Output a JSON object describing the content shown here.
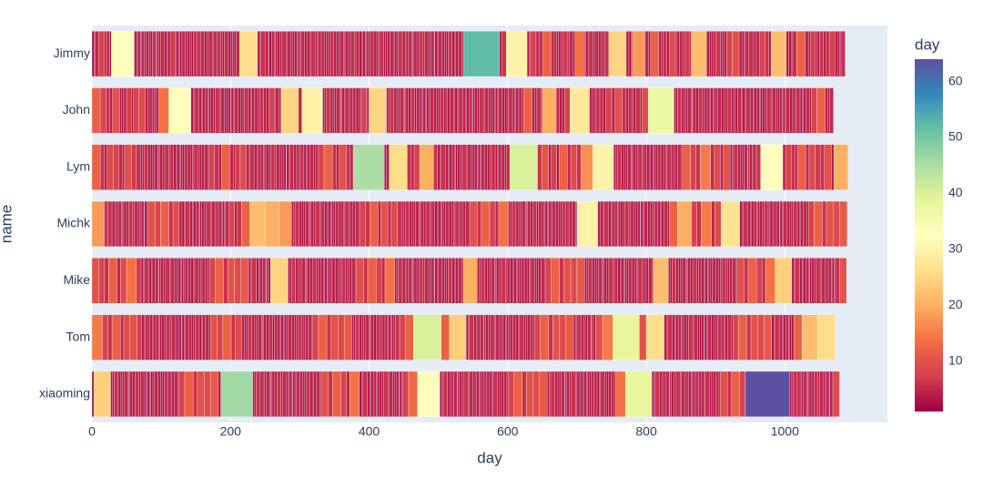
{
  "chart_data": {
    "type": "bar",
    "orientation": "h",
    "barmode": "stack",
    "categories": [
      "Jimmy",
      "John",
      "Lym",
      "Michk",
      "Mike",
      "Tom",
      "xiaoming"
    ],
    "values": [
      [
        3,
        2,
        5,
        8,
        2,
        6,
        2,
        33,
        4,
        2,
        3,
        1,
        5,
        2,
        4,
        3,
        2,
        6,
        1,
        3,
        2,
        5,
        4,
        2,
        3,
        7,
        2,
        4,
        1,
        3,
        5,
        2,
        4,
        3,
        2,
        6,
        3,
        2,
        5,
        4,
        3,
        5,
        2,
        4,
        6,
        3,
        2,
        5,
        4,
        3,
        2,
        3,
        5,
        26,
        3,
        2,
        6,
        4,
        2,
        3,
        5,
        1,
        2,
        4,
        3,
        6,
        2,
        5,
        3,
        2,
        4,
        1,
        3,
        2,
        5,
        4,
        3,
        2,
        6,
        3,
        2,
        4,
        5,
        2,
        3,
        2,
        6,
        4,
        2,
        3,
        5,
        1,
        2,
        4,
        3,
        6,
        2,
        5,
        3,
        2,
        4,
        1,
        3,
        2,
        5,
        4,
        3,
        2,
        6,
        3,
        2,
        4,
        5,
        2,
        3,
        2,
        6,
        4,
        2,
        3,
        5,
        1,
        2,
        4,
        3,
        6,
        2,
        5,
        3,
        2,
        4,
        1,
        3,
        2,
        5,
        4,
        3,
        2,
        6,
        3,
        2,
        4,
        5,
        2,
        52,
        4,
        6,
        30,
        3,
        2,
        8,
        4,
        6,
        12,
        3,
        5,
        2,
        4,
        3,
        7,
        2,
        5,
        3,
        14,
        2,
        4,
        6,
        3,
        5,
        4,
        3,
        2,
        6,
        25,
        4,
        3,
        2,
        18,
        5,
        3,
        12,
        4,
        2,
        6,
        3,
        9,
        2,
        4,
        5,
        3,
        7,
        2,
        22,
        4,
        3,
        2,
        5,
        6,
        3,
        2,
        4,
        8,
        10,
        4,
        3,
        2,
        5,
        6,
        3,
        2,
        4,
        8,
        6,
        3,
        22,
        4,
        3,
        2,
        6,
        12,
        5,
        3,
        7,
        2,
        4,
        6,
        3,
        5,
        8,
        4,
        3,
        2,
        6
      ],
      [
        12,
        8,
        6,
        4,
        10,
        3,
        2,
        5,
        7,
        3,
        8,
        9,
        4,
        6,
        3,
        2,
        5,
        14,
        32,
        3,
        2,
        6,
        4,
        2,
        3,
        5,
        1,
        2,
        4,
        3,
        6,
        2,
        5,
        3,
        2,
        4,
        1,
        3,
        2,
        5,
        4,
        3,
        2,
        6,
        3,
        2,
        4,
        5,
        2,
        6,
        4,
        3,
        8,
        2,
        5,
        3,
        25,
        5,
        30,
        3,
        2,
        6,
        4,
        2,
        3,
        5,
        1,
        2,
        4,
        6,
        3,
        2,
        5,
        4,
        3,
        8,
        2,
        2,
        25,
        3,
        2,
        6,
        4,
        2,
        3,
        5,
        1,
        2,
        4,
        3,
        6,
        2,
        5,
        3,
        2,
        4,
        1,
        3,
        2,
        5,
        4,
        3,
        2,
        6,
        3,
        2,
        4,
        5,
        2,
        3,
        2,
        6,
        4,
        2,
        3,
        5,
        1,
        2,
        4,
        3,
        6,
        2,
        5,
        3,
        2,
        4,
        1,
        3,
        2,
        5,
        4,
        3,
        2,
        6,
        3,
        2,
        4,
        5,
        2,
        12,
        4,
        3,
        6,
        2,
        20,
        5,
        3,
        4,
        8,
        28,
        4,
        3,
        2,
        6,
        5,
        3,
        8,
        2,
        4,
        10,
        6,
        3,
        5,
        2,
        4,
        6,
        3,
        9,
        37,
        3,
        2,
        6,
        4,
        2,
        3,
        5,
        1,
        2,
        4,
        3,
        6,
        2,
        5,
        3,
        2,
        4,
        1,
        3,
        2,
        5,
        4,
        3,
        2,
        6,
        3,
        2,
        4,
        5,
        2,
        3,
        2,
        6,
        4,
        2,
        3,
        5,
        1,
        2,
        4,
        3,
        6,
        2,
        5,
        3,
        2,
        4,
        1,
        3,
        2,
        5,
        4,
        3,
        2,
        6,
        3,
        2,
        4,
        5,
        2,
        8,
        12,
        4,
        3,
        5
      ],
      [
        12,
        6,
        4,
        9,
        8,
        5,
        3,
        10,
        7,
        6,
        3,
        2,
        6,
        4,
        2,
        3,
        5,
        1,
        2,
        4,
        3,
        6,
        2,
        5,
        3,
        2,
        4,
        1,
        3,
        2,
        5,
        4,
        3,
        2,
        6,
        3,
        2,
        4,
        5,
        2,
        8,
        6,
        4,
        12,
        5,
        3,
        7,
        9,
        3,
        2,
        6,
        4,
        2,
        3,
        5,
        1,
        2,
        4,
        3,
        6,
        2,
        5,
        3,
        2,
        4,
        1,
        3,
        2,
        5,
        4,
        3,
        2,
        6,
        3,
        2,
        4,
        5,
        2,
        5,
        8,
        12,
        6,
        4,
        10,
        6,
        4,
        45,
        3,
        4,
        26,
        6,
        4,
        8,
        20,
        6,
        3,
        2,
        6,
        4,
        2,
        3,
        5,
        1,
        2,
        4,
        3,
        6,
        2,
        5,
        3,
        2,
        4,
        1,
        3,
        2,
        5,
        4,
        3,
        2,
        6,
        3,
        2,
        4,
        5,
        2,
        5,
        40,
        6,
        10,
        4,
        8,
        3,
        12,
        5,
        9,
        6,
        17,
        30,
        3,
        2,
        6,
        4,
        2,
        3,
        5,
        1,
        2,
        4,
        3,
        6,
        2,
        5,
        3,
        2,
        4,
        1,
        3,
        2,
        5,
        4,
        3,
        2,
        6,
        3,
        2,
        4,
        5,
        2,
        12,
        8,
        6,
        15,
        5,
        9,
        4,
        10,
        3,
        2,
        6,
        4,
        2,
        3,
        5,
        1,
        2,
        4,
        6,
        6,
        32,
        4,
        8,
        6,
        3,
        12,
        5,
        9,
        7,
        6,
        10,
        4,
        20
      ],
      [
        18,
        3,
        2,
        6,
        4,
        2,
        3,
        5,
        1,
        2,
        4,
        3,
        6,
        2,
        5,
        3,
        2,
        4,
        1,
        3,
        2,
        10,
        8,
        12,
        6,
        9,
        4,
        3,
        2,
        6,
        4,
        2,
        3,
        5,
        1,
        2,
        4,
        3,
        6,
        2,
        5,
        3,
        2,
        4,
        1,
        3,
        2,
        5,
        8,
        4,
        6,
        12,
        22,
        20,
        18,
        3,
        2,
        6,
        4,
        2,
        3,
        5,
        1,
        2,
        4,
        3,
        6,
        2,
        5,
        3,
        2,
        4,
        1,
        3,
        2,
        5,
        4,
        3,
        2,
        6,
        3,
        2,
        4,
        5,
        2,
        8,
        6,
        12,
        4,
        10,
        5,
        9,
        6,
        3,
        2,
        6,
        4,
        2,
        3,
        5,
        1,
        2,
        4,
        3,
        6,
        2,
        5,
        3,
        2,
        4,
        1,
        3,
        2,
        5,
        4,
        3,
        2,
        6,
        3,
        2,
        4,
        5,
        2,
        10,
        6,
        12,
        8,
        5,
        14,
        3,
        2,
        6,
        4,
        2,
        3,
        5,
        1,
        2,
        4,
        3,
        6,
        2,
        5,
        3,
        2,
        4,
        1,
        3,
        2,
        5,
        4,
        3,
        2,
        6,
        3,
        2,
        4,
        5,
        2,
        30,
        4,
        3,
        2,
        6,
        4,
        2,
        3,
        5,
        1,
        2,
        4,
        3,
        6,
        2,
        5,
        3,
        2,
        4,
        1,
        3,
        2,
        5,
        4,
        3,
        2,
        6,
        3,
        2,
        4,
        5,
        2,
        12,
        20,
        8,
        6,
        15,
        5,
        9,
        27,
        3,
        2,
        6,
        4,
        2,
        3,
        5,
        1,
        2,
        4,
        3,
        6,
        2,
        5,
        3,
        2,
        4,
        1,
        3,
        2,
        5,
        4,
        3,
        2,
        6,
        3,
        2,
        4,
        5,
        2,
        8,
        12,
        6,
        10,
        9,
        11
      ],
      [
        10,
        8,
        6,
        12,
        5,
        9,
        14,
        7,
        3,
        2,
        6,
        4,
        2,
        3,
        5,
        1,
        2,
        4,
        3,
        6,
        2,
        5,
        3,
        2,
        4,
        1,
        3,
        2,
        5,
        4,
        3,
        2,
        6,
        3,
        2,
        4,
        5,
        2,
        8,
        12,
        6,
        10,
        9,
        11,
        3,
        2,
        6,
        4,
        2,
        3,
        5,
        1,
        2,
        4,
        25,
        3,
        2,
        6,
        4,
        2,
        3,
        5,
        1,
        2,
        4,
        3,
        6,
        2,
        5,
        3,
        2,
        4,
        1,
        3,
        2,
        5,
        4,
        3,
        2,
        6,
        3,
        2,
        4,
        5,
        2,
        10,
        6,
        12,
        8,
        5,
        14,
        3,
        2,
        6,
        4,
        2,
        3,
        5,
        1,
        2,
        4,
        3,
        6,
        2,
        5,
        3,
        2,
        4,
        1,
        3,
        2,
        5,
        4,
        3,
        2,
        6,
        3,
        2,
        4,
        5,
        2,
        20,
        3,
        2,
        6,
        4,
        2,
        3,
        5,
        1,
        2,
        4,
        3,
        6,
        2,
        5,
        3,
        2,
        4,
        1,
        3,
        2,
        5,
        4,
        3,
        2,
        6,
        3,
        2,
        4,
        5,
        2,
        8,
        12,
        6,
        10,
        9,
        11,
        3,
        2,
        6,
        4,
        2,
        3,
        5,
        1,
        2,
        4,
        3,
        6,
        2,
        5,
        3,
        2,
        4,
        1,
        3,
        2,
        5,
        4,
        3,
        2,
        6,
        3,
        2,
        4,
        5,
        2,
        22,
        3,
        2,
        6,
        4,
        2,
        3,
        5,
        1,
        2,
        4,
        3,
        6,
        2,
        5,
        3,
        2,
        4,
        1,
        3,
        2,
        5,
        4,
        3,
        2,
        6,
        3,
        2,
        4,
        5,
        2,
        10,
        6,
        12,
        8,
        5,
        14,
        24,
        3,
        2,
        6,
        4,
        2,
        3,
        5,
        1,
        2,
        4,
        3,
        6,
        2,
        5,
        3,
        2,
        4,
        1,
        3,
        2,
        6,
        10
      ],
      [
        15,
        8,
        6,
        12,
        5,
        9,
        10,
        7,
        3,
        2,
        6,
        4,
        2,
        3,
        5,
        1,
        2,
        4,
        3,
        6,
        2,
        5,
        3,
        2,
        4,
        1,
        3,
        2,
        5,
        4,
        3,
        2,
        6,
        3,
        2,
        4,
        5,
        2,
        10,
        8,
        12,
        6,
        9,
        4,
        3,
        2,
        6,
        4,
        2,
        3,
        5,
        1,
        2,
        4,
        3,
        6,
        2,
        5,
        3,
        2,
        4,
        1,
        3,
        2,
        5,
        4,
        3,
        2,
        6,
        3,
        2,
        4,
        5,
        2,
        8,
        12,
        6,
        10,
        9,
        11,
        3,
        2,
        6,
        4,
        2,
        3,
        5,
        1,
        2,
        4,
        3,
        6,
        2,
        5,
        3,
        2,
        4,
        1,
        3,
        2,
        6,
        8,
        12,
        40,
        12,
        24,
        3,
        2,
        6,
        4,
        2,
        3,
        5,
        1,
        2,
        4,
        3,
        6,
        2,
        5,
        3,
        2,
        4,
        1,
        3,
        2,
        5,
        4,
        3,
        2,
        6,
        3,
        2,
        4,
        5,
        2,
        8,
        12,
        6,
        10,
        9,
        11,
        3,
        2,
        6,
        4,
        2,
        3,
        5,
        1,
        2,
        4,
        10,
        15,
        38,
        10,
        26,
        3,
        2,
        6,
        4,
        2,
        3,
        5,
        1,
        2,
        4,
        3,
        6,
        2,
        5,
        3,
        2,
        4,
        1,
        3,
        2,
        5,
        4,
        3,
        2,
        6,
        3,
        2,
        4,
        5,
        2,
        8,
        12,
        6,
        10,
        9,
        11,
        3,
        2,
        6,
        4,
        2,
        3,
        5,
        1,
        2,
        4,
        12,
        22,
        26
      ],
      [
        3,
        24,
        3,
        2,
        6,
        4,
        2,
        3,
        5,
        1,
        2,
        4,
        3,
        6,
        2,
        5,
        3,
        2,
        4,
        1,
        3,
        2,
        5,
        4,
        3,
        2,
        6,
        3,
        2,
        4,
        5,
        2,
        8,
        12,
        6,
        10,
        9,
        11,
        4,
        46,
        3,
        2,
        6,
        4,
        2,
        3,
        5,
        1,
        2,
        4,
        3,
        6,
        2,
        5,
        3,
        2,
        4,
        1,
        3,
        2,
        5,
        4,
        3,
        2,
        6,
        3,
        2,
        4,
        5,
        2,
        10,
        6,
        12,
        8,
        5,
        14,
        3,
        2,
        6,
        4,
        2,
        3,
        5,
        1,
        2,
        4,
        3,
        6,
        2,
        5,
        3,
        2,
        4,
        1,
        3,
        2,
        8,
        13,
        32,
        3,
        2,
        6,
        4,
        2,
        3,
        5,
        1,
        2,
        4,
        3,
        6,
        2,
        5,
        3,
        2,
        4,
        1,
        3,
        2,
        5,
        4,
        3,
        2,
        6,
        3,
        2,
        4,
        5,
        2,
        8,
        12,
        6,
        10,
        9,
        11,
        3,
        2,
        6,
        4,
        2,
        3,
        5,
        1,
        2,
        4,
        3,
        6,
        2,
        5,
        3,
        2,
        4,
        1,
        3,
        2,
        5,
        4,
        3,
        2,
        6,
        3,
        2,
        4,
        5,
        2,
        14,
        38,
        3,
        2,
        6,
        4,
        2,
        3,
        5,
        1,
        2,
        4,
        3,
        6,
        2,
        5,
        3,
        2,
        4,
        1,
        3,
        2,
        5,
        4,
        3,
        2,
        6,
        3,
        2,
        4,
        5,
        2,
        10,
        6,
        12,
        8,
        64,
        3,
        2,
        6,
        4,
        2,
        3,
        5,
        1,
        2,
        4,
        3,
        6,
        2,
        5,
        3,
        2,
        4,
        1,
        3,
        2,
        9
      ]
    ],
    "xlabel": "day",
    "ylabel": "name",
    "xlim": [
      0,
      1148
    ],
    "xticks": [
      0,
      200,
      400,
      600,
      800,
      1000
    ],
    "grid": true,
    "colorbar": {
      "title": "day",
      "cmin": 1,
      "cmax": 64,
      "ticks": [
        10,
        20,
        30,
        40,
        50,
        60
      ],
      "colorscale": [
        "#9e0142",
        "#d53e4f",
        "#f46d43",
        "#fdae61",
        "#fee08b",
        "#ffffbf",
        "#e6f598",
        "#abdda4",
        "#66c2a5",
        "#3288bd",
        "#5e4fa2"
      ]
    }
  }
}
